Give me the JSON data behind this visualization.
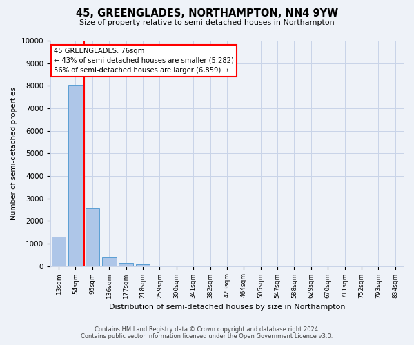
{
  "title": "45, GREENGLADES, NORTHAMPTON, NN4 9YW",
  "subtitle": "Size of property relative to semi-detached houses in Northampton",
  "xlabel": "Distribution of semi-detached houses by size in Northampton",
  "ylabel": "Number of semi-detached properties",
  "categories": [
    "13sqm",
    "54sqm",
    "95sqm",
    "136sqm",
    "177sqm",
    "218sqm",
    "259sqm",
    "300sqm",
    "341sqm",
    "382sqm",
    "423sqm",
    "464sqm",
    "505sqm",
    "547sqm",
    "588sqm",
    "629sqm",
    "670sqm",
    "711sqm",
    "752sqm",
    "793sqm",
    "834sqm"
  ],
  "values": [
    1300,
    8050,
    2550,
    370,
    130,
    70,
    0,
    0,
    0,
    0,
    0,
    0,
    0,
    0,
    0,
    0,
    0,
    0,
    0,
    0,
    0
  ],
  "bar_color": "#aec6e8",
  "bar_edge_color": "#5a9fd4",
  "vline_x": 1.5,
  "vline_color": "red",
  "annotation_title": "45 GREENGLADES: 76sqm",
  "annotation_line1": "← 43% of semi-detached houses are smaller (5,282)",
  "annotation_line2": "56% of semi-detached houses are larger (6,859) →",
  "annotation_box_color": "white",
  "annotation_box_edge": "red",
  "ylim": [
    0,
    10000
  ],
  "yticks": [
    0,
    1000,
    2000,
    3000,
    4000,
    5000,
    6000,
    7000,
    8000,
    9000,
    10000
  ],
  "footer_line1": "Contains HM Land Registry data © Crown copyright and database right 2024.",
  "footer_line2": "Contains public sector information licensed under the Open Government Licence v3.0.",
  "bg_color": "#eef2f8",
  "grid_color": "#c8d4e8"
}
